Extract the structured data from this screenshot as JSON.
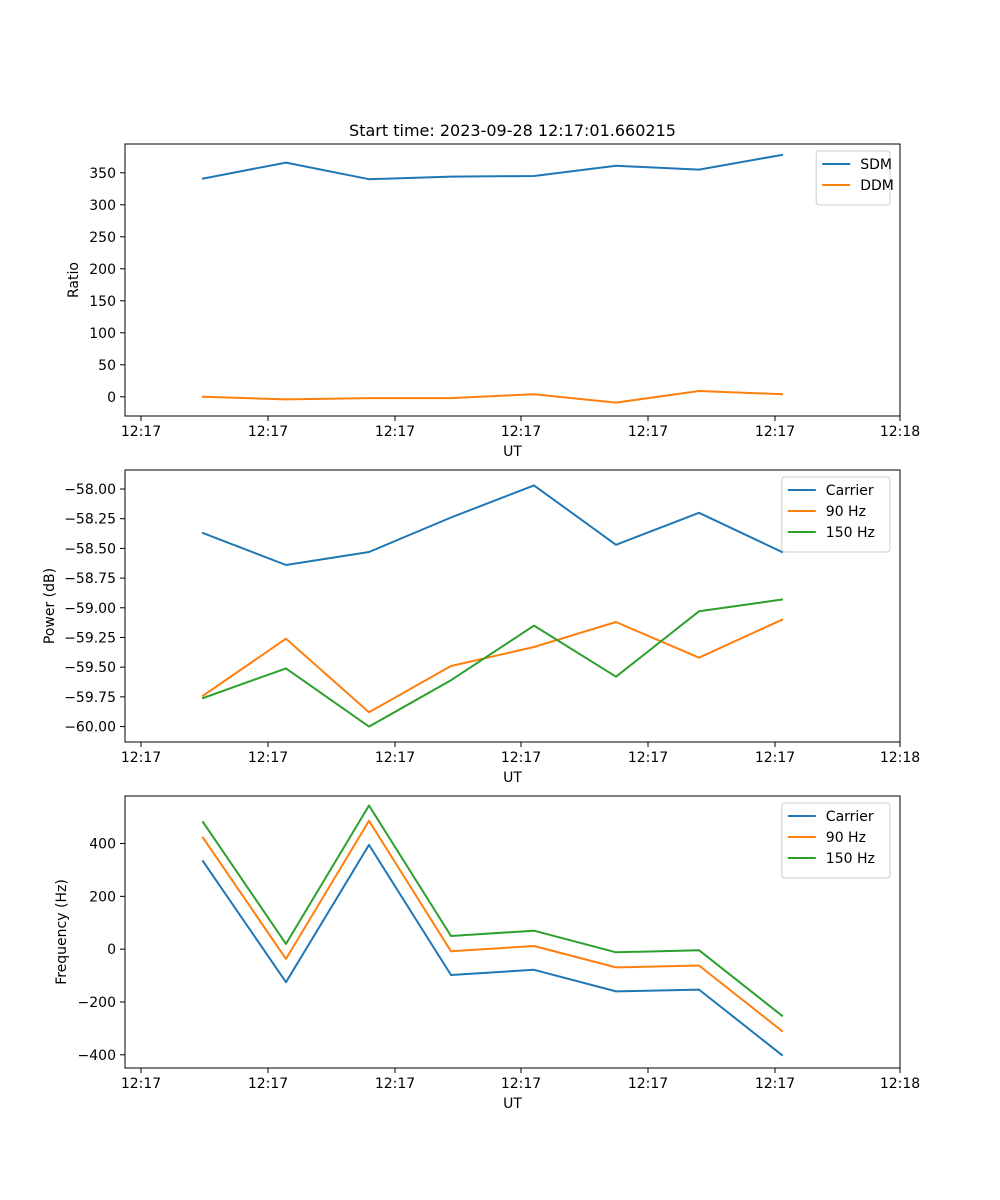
{
  "chart_data": [
    {
      "type": "line",
      "title": "Start time: 2023-09-28 12:17:01.660215",
      "xlabel": "UT",
      "ylabel": "Ratio",
      "x_tick_labels": [
        "12:17",
        "12:17",
        "12:17",
        "12:17",
        "12:17",
        "12:17",
        "12:18"
      ],
      "yticks": [
        0,
        50,
        100,
        150,
        200,
        250,
        300,
        350
      ],
      "ylim": [
        -30,
        395
      ],
      "grid": false,
      "legend_location": "top-right",
      "series": [
        {
          "name": "SDM",
          "color": "#1f77b4",
          "values": [
            341,
            366,
            340,
            344,
            345,
            361,
            355,
            378
          ]
        },
        {
          "name": "DDM",
          "color": "#ff7f0e",
          "values": [
            0,
            -4,
            -2,
            -2,
            4,
            -9,
            9,
            4
          ]
        }
      ]
    },
    {
      "type": "line",
      "title": "",
      "xlabel": "UT",
      "ylabel": "Power (dB)",
      "x_tick_labels": [
        "12:17",
        "12:17",
        "12:17",
        "12:17",
        "12:17",
        "12:17",
        "12:18"
      ],
      "yticks": [
        -60.0,
        -59.75,
        -59.5,
        -59.25,
        -59.0,
        -58.75,
        -58.5,
        -58.25,
        -58.0
      ],
      "ytick_labels": [
        "−60.00",
        "−59.75",
        "−59.50",
        "−59.25",
        "−59.00",
        "−58.75",
        "−58.50",
        "−58.25",
        "−58.00"
      ],
      "ylim": [
        -60.13,
        -57.84
      ],
      "grid": false,
      "legend_location": "top-right",
      "series": [
        {
          "name": "Carrier",
          "color": "#1f77b4",
          "values": [
            -58.37,
            -58.64,
            -58.53,
            -58.24,
            -57.97,
            -58.47,
            -58.2,
            -58.53
          ]
        },
        {
          "name": "90 Hz",
          "color": "#ff7f0e",
          "values": [
            -59.74,
            -59.26,
            -59.88,
            -59.49,
            -59.33,
            -59.12,
            -59.42,
            -59.1
          ]
        },
        {
          "name": "150 Hz",
          "color": "#2ca02c",
          "values": [
            -59.76,
            -59.51,
            -60.0,
            -59.61,
            -59.15,
            -59.58,
            -59.03,
            -58.93
          ]
        }
      ]
    },
    {
      "type": "line",
      "title": "",
      "xlabel": "UT",
      "ylabel": "Frequency (Hz)",
      "x_tick_labels": [
        "12:17",
        "12:17",
        "12:17",
        "12:17",
        "12:17",
        "12:17",
        "12:18"
      ],
      "yticks": [
        -400,
        -200,
        0,
        200,
        400
      ],
      "ytick_labels": [
        "−400",
        "−200",
        "0",
        "200",
        "400"
      ],
      "ylim": [
        -450,
        580
      ],
      "grid": false,
      "legend_location": "top-right",
      "series": [
        {
          "name": "Carrier",
          "color": "#1f77b4",
          "values": [
            333,
            -125,
            395,
            -98,
            -78,
            -160,
            -153,
            -401
          ]
        },
        {
          "name": "90 Hz",
          "color": "#ff7f0e",
          "values": [
            422,
            -37,
            486,
            -8,
            12,
            -69,
            -62,
            -310
          ]
        },
        {
          "name": "150 Hz",
          "color": "#2ca02c",
          "values": [
            481,
            20,
            544,
            50,
            70,
            -12,
            -4,
            -252
          ]
        }
      ]
    }
  ]
}
